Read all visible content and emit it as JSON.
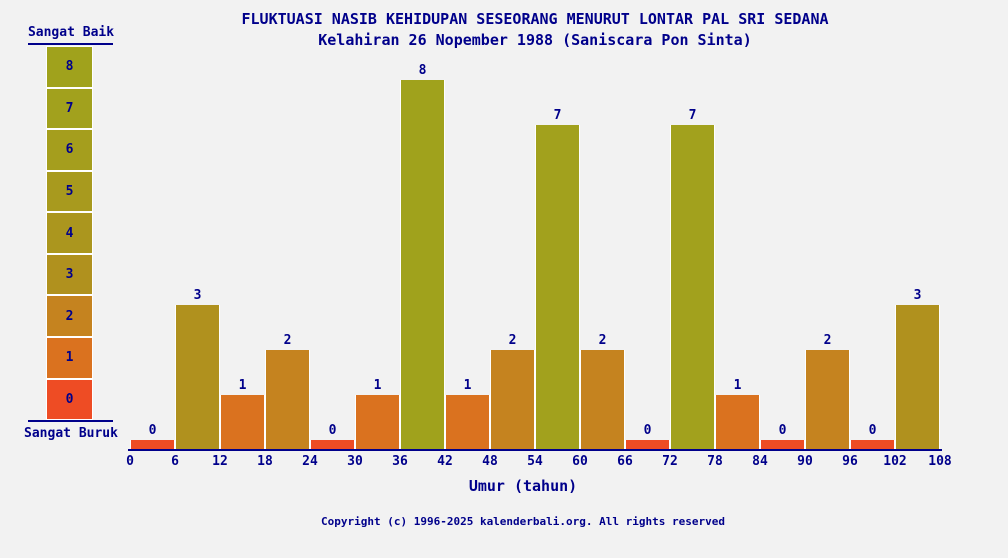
{
  "title": "FLUKTUASI NASIB KEHIDUPAN SESEORANG MENURUT LONTAR PAL SRI SEDANA",
  "subtitle": "Kelahiran 26 Nopember 1988 (Saniscara Pon Sinta)",
  "legend": {
    "top_label": "Sangat Baik",
    "bottom_label": "Sangat Buruk",
    "cells": [
      {
        "value": 8,
        "color": "#a0a21c"
      },
      {
        "value": 7,
        "color": "#a2a11d"
      },
      {
        "value": 6,
        "color": "#a59e1d"
      },
      {
        "value": 5,
        "color": "#a89a1e"
      },
      {
        "value": 4,
        "color": "#ab961e"
      },
      {
        "value": 3,
        "color": "#b0911e"
      },
      {
        "value": 2,
        "color": "#c5831f"
      },
      {
        "value": 1,
        "color": "#da721f"
      },
      {
        "value": 0,
        "color": "#ee4c24"
      }
    ]
  },
  "chart_data": {
    "type": "bar",
    "title": "FLUKTUASI NASIB KEHIDUPAN SESEORANG MENURUT LONTAR PAL SRI SEDANA",
    "subtitle": "Kelahiran 26 Nopember 1988 (Saniscara Pon Sinta)",
    "xlabel": "Umur (tahun)",
    "ylabel": "",
    "ylim": [
      0,
      8
    ],
    "grid": false,
    "legend_position": "left",
    "legend_scale_top": "Sangat Baik",
    "legend_scale_bottom": "Sangat Buruk",
    "categories": [
      "0-6",
      "6-12",
      "12-18",
      "18-24",
      "24-30",
      "30-36",
      "36-42",
      "42-48",
      "48-54",
      "54-60",
      "60-66",
      "66-72",
      "72-78",
      "78-84",
      "84-90",
      "90-96",
      "96-102",
      "102-108"
    ],
    "values": [
      0,
      3,
      1,
      2,
      0,
      1,
      8,
      1,
      2,
      7,
      2,
      0,
      7,
      1,
      0,
      2,
      0,
      3
    ],
    "x_ticks": [
      0,
      6,
      12,
      18,
      24,
      30,
      36,
      42,
      48,
      54,
      60,
      66,
      72,
      78,
      84,
      90,
      96,
      102,
      108
    ]
  },
  "colors": {
    "background": "#f2f2f2",
    "text": "#00008b",
    "axis": "#00008b",
    "value_colors": {
      "0": "#ee4c24",
      "1": "#da721f",
      "2": "#c5831f",
      "3": "#b0911e",
      "4": "#ab961e",
      "5": "#a89a1e",
      "6": "#a59e1d",
      "7": "#a2a11d",
      "8": "#a0a21c"
    }
  },
  "footer": {
    "copyright": "Copyright (c) 1996-2025 kalenderbali.org. All rights reserved"
  }
}
